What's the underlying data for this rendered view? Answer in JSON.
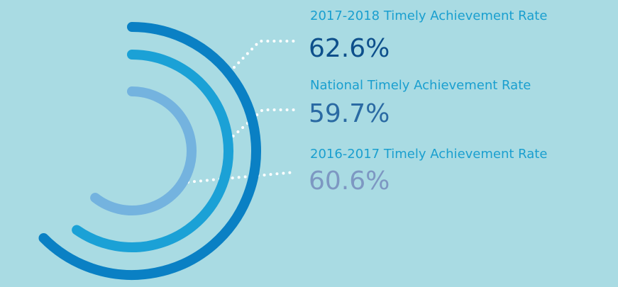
{
  "chart_data": {
    "type": "radial-bar",
    "series": [
      {
        "name": "2017-2018 Timely Achievement Rate",
        "values": [
          62.6
        ],
        "value_labels": [
          "62.6%"
        ],
        "color": "#0a80c4",
        "label_color": "#0d4f8b"
      },
      {
        "name": "National Timely Achievement Rate",
        "values": [
          59.7
        ],
        "value_labels": [
          "59.7%"
        ],
        "color": "#1ba1d6",
        "label_color": "#2a6aa3"
      },
      {
        "name": "2016-2017 Timely Achievement Rate",
        "values": [
          60.6
        ],
        "value_labels": [
          "60.6%"
        ],
        "color": "#74b3df",
        "label_color": "#7d97c2"
      }
    ]
  }
}
